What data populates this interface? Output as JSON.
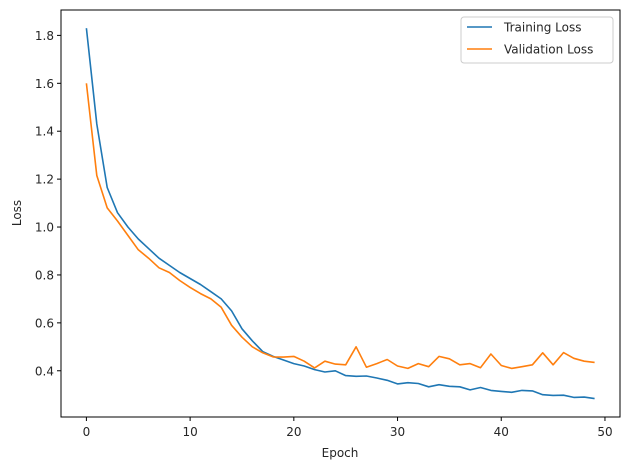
{
  "chart_data": {
    "type": "line",
    "title": "",
    "xlabel": "Epoch",
    "ylabel": "Loss",
    "xlim": [
      -2.45,
      51.45
    ],
    "ylim": [
      0.207,
      1.906
    ],
    "xticks": [
      0,
      10,
      20,
      30,
      40,
      50
    ],
    "yticks": [
      0.4,
      0.6,
      0.8,
      1.0,
      1.2,
      1.4,
      1.6,
      1.8
    ],
    "ytick_labels": [
      "0.4",
      "0.6",
      "0.8",
      "1.0",
      "1.2",
      "1.4",
      "1.6",
      "1.8"
    ],
    "grid": false,
    "legend_position": "upper right",
    "x": [
      0,
      1,
      2,
      3,
      4,
      5,
      6,
      7,
      8,
      9,
      10,
      11,
      12,
      13,
      14,
      15,
      16,
      17,
      18,
      19,
      20,
      21,
      22,
      23,
      24,
      25,
      26,
      27,
      28,
      29,
      30,
      31,
      32,
      33,
      34,
      35,
      36,
      37,
      38,
      39,
      40,
      41,
      42,
      43,
      44,
      45,
      46,
      47,
      48,
      49
    ],
    "series": [
      {
        "name": "Training Loss",
        "color": "#1f77b4",
        "values": [
          1.83,
          1.43,
          1.165,
          1.06,
          1.0,
          0.95,
          0.91,
          0.87,
          0.84,
          0.81,
          0.785,
          0.76,
          0.73,
          0.7,
          0.65,
          0.575,
          0.525,
          0.48,
          0.46,
          0.445,
          0.43,
          0.42,
          0.405,
          0.395,
          0.4,
          0.38,
          0.377,
          0.378,
          0.37,
          0.36,
          0.345,
          0.35,
          0.347,
          0.333,
          0.342,
          0.335,
          0.333,
          0.32,
          0.33,
          0.318,
          0.314,
          0.31,
          0.318,
          0.316,
          0.3,
          0.297,
          0.298,
          0.289,
          0.29,
          0.284
        ]
      },
      {
        "name": "Validation Loss",
        "color": "#ff7f0e",
        "values": [
          1.6,
          1.215,
          1.08,
          1.025,
          0.965,
          0.905,
          0.87,
          0.83,
          0.81,
          0.777,
          0.748,
          0.722,
          0.7,
          0.665,
          0.59,
          0.54,
          0.5,
          0.475,
          0.458,
          0.457,
          0.46,
          0.44,
          0.412,
          0.44,
          0.428,
          0.425,
          0.5,
          0.415,
          0.43,
          0.447,
          0.42,
          0.41,
          0.43,
          0.417,
          0.46,
          0.45,
          0.425,
          0.43,
          0.413,
          0.47,
          0.422,
          0.41,
          0.417,
          0.425,
          0.475,
          0.425,
          0.476,
          0.452,
          0.44,
          0.435
        ]
      }
    ]
  },
  "legend": {
    "items": [
      {
        "label": "Training Loss",
        "color": "#1f77b4"
      },
      {
        "label": "Validation Loss",
        "color": "#ff7f0e"
      }
    ]
  },
  "axes": {
    "xlabel": "Epoch",
    "ylabel": "Loss"
  }
}
